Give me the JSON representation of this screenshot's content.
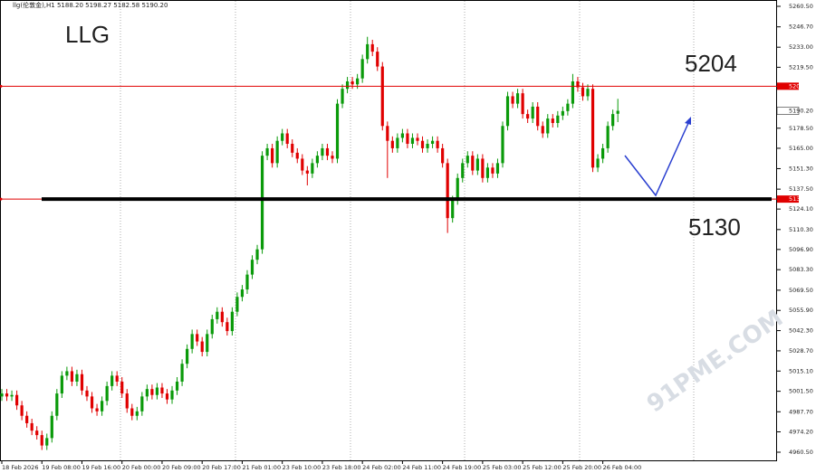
{
  "chart_data": {
    "type": "candlestick",
    "header": "llg(伦敦金),H1  5188.20 5198.27 5182.58 5190.20",
    "annotations": [
      "LLG",
      "5204",
      "5130"
    ],
    "watermark": "91PME.COM",
    "up_color": "#0a9a0a",
    "down_color": "#e00000",
    "categories": [
      "18 Feb 2026",
      null,
      null,
      null,
      null,
      null,
      null,
      null,
      "19 Feb 08:00",
      null,
      null,
      null,
      null,
      null,
      null,
      null,
      "19 Feb 16:00",
      null,
      null,
      null,
      null,
      null,
      null,
      null,
      "20 Feb 00:00",
      null,
      null,
      null,
      null,
      null,
      null,
      null,
      "20 Feb 09:00",
      null,
      null,
      null,
      null,
      null,
      null,
      null,
      "20 Feb 17:00",
      null,
      null,
      null,
      null,
      null,
      null,
      null,
      "21 Feb 01:00",
      null,
      null,
      null,
      null,
      null,
      null,
      null,
      "23 Feb 10:00",
      null,
      null,
      null,
      null,
      null,
      null,
      null,
      "23 Feb 18:00",
      null,
      null,
      null,
      null,
      null,
      null,
      null,
      "24 Feb 02:00",
      null,
      null,
      null,
      null,
      null,
      null,
      null,
      "24 Feb 11:00",
      null,
      null,
      null,
      null,
      null,
      null,
      null,
      "24 Feb 19:00",
      null,
      null,
      null,
      null,
      null,
      null,
      null,
      "25 Feb 03:00",
      null,
      null,
      null,
      null,
      null,
      null,
      null,
      "25 Feb 12:00",
      null,
      null,
      null,
      null,
      null,
      null,
      null,
      "25 Feb 20:00",
      null,
      null,
      null,
      null,
      null,
      null,
      null,
      "26 Feb 04:00",
      null,
      null,
      null
    ],
    "open": [
      4998,
      5000,
      4998,
      4999,
      4992,
      4985,
      4980,
      4975,
      4972,
      4965,
      4970,
      4985,
      5000,
      5012,
      5015,
      5008,
      5013,
      5002,
      4998,
      4990,
      4988,
      4995,
      5005,
      5012,
      5008,
      5000,
      4990,
      4985,
      4988,
      4998,
      5003,
      4999,
      5004,
      5000,
      4996,
      5002,
      5008,
      5020,
      5030,
      5040,
      5035,
      5028,
      5040,
      5050,
      5055,
      5048,
      5042,
      5055,
      5065,
      5070,
      5080,
      5090,
      5097,
      5160,
      5165,
      5155,
      5170,
      5175,
      5168,
      5162,
      5158,
      5150,
      5148,
      5155,
      5160,
      5165,
      5160,
      5158,
      5195,
      5205,
      5210,
      5208,
      5212,
      5225,
      5235,
      5230,
      5220,
      5180,
      5170,
      5165,
      5172,
      5175,
      5168,
      5172,
      5170,
      5165,
      5168,
      5170,
      5165,
      5155,
      5118,
      5130,
      5145,
      5155,
      5160,
      5150,
      5158,
      5145,
      5152,
      5148,
      5155,
      5180,
      5200,
      5195,
      5202,
      5188,
      5185,
      5193,
      5180,
      5175,
      5185,
      5182,
      5187,
      5190,
      5195,
      5210,
      5206,
      5200,
      5205,
      5152,
      5158,
      5165,
      5180,
      5188.2
    ],
    "high": [
      5003,
      5003,
      5002,
      5002,
      4995,
      4988,
      4983,
      4978,
      4975,
      4973,
      4988,
      5003,
      5015,
      5018,
      5018,
      5016,
      5016,
      5005,
      5001,
      4993,
      4998,
      5008,
      5015,
      5015,
      5011,
      5003,
      4993,
      4991,
      5001,
      5006,
      5006,
      5007,
      5007,
      5003,
      5005,
      5011,
      5023,
      5033,
      5043,
      5043,
      5038,
      5043,
      5053,
      5058,
      5058,
      5051,
      5058,
      5068,
      5073,
      5083,
      5093,
      5100,
      5163,
      5168,
      5168,
      5173,
      5178,
      5178,
      5171,
      5165,
      5161,
      5153,
      5158,
      5163,
      5168,
      5168,
      5163,
      5198,
      5208,
      5213,
      5213,
      5215,
      5228,
      5240,
      5238,
      5233,
      5223,
      5183,
      5173,
      5175,
      5178,
      5178,
      5175,
      5175,
      5173,
      5171,
      5173,
      5173,
      5168,
      5158,
      5133,
      5148,
      5158,
      5163,
      5163,
      5161,
      5161,
      5155,
      5155,
      5158,
      5183,
      5203,
      5203,
      5205,
      5205,
      5191,
      5196,
      5196,
      5183,
      5188,
      5188,
      5190,
      5193,
      5198,
      5215,
      5213,
      5209,
      5208,
      5208,
      5161,
      5168,
      5183,
      5191,
      5198.27
    ],
    "low": [
      4995,
      4995,
      4995,
      4989,
      4982,
      4977,
      4972,
      4969,
      4962,
      4962,
      4967,
      4982,
      4997,
      5009,
      5005,
      5005,
      4999,
      4995,
      4987,
      4985,
      4985,
      4992,
      5002,
      5005,
      4997,
      4987,
      4982,
      4982,
      4985,
      4995,
      4996,
      4996,
      4997,
      4993,
      4993,
      4999,
      5005,
      5017,
      5027,
      5032,
      5025,
      5025,
      5037,
      5047,
      5045,
      5039,
      5039,
      5052,
      5062,
      5067,
      5077,
      5087,
      5094,
      5157,
      5152,
      5152,
      5167,
      5165,
      5159,
      5155,
      5147,
      5140,
      5145,
      5152,
      5157,
      5157,
      5155,
      5155,
      5192,
      5202,
      5205,
      5205,
      5209,
      5222,
      5227,
      5217,
      5177,
      5145,
      5162,
      5162,
      5169,
      5165,
      5165,
      5167,
      5162,
      5162,
      5165,
      5162,
      5152,
      5108,
      5115,
      5127,
      5142,
      5152,
      5147,
      5147,
      5142,
      5142,
      5145,
      5145,
      5152,
      5177,
      5192,
      5192,
      5185,
      5182,
      5182,
      5177,
      5172,
      5172,
      5179,
      5179,
      5184,
      5187,
      5192,
      5203,
      5197,
      5197,
      5149,
      5149,
      5155,
      5162,
      5177,
      5182.58
    ],
    "close": [
      5000,
      4998,
      4999,
      4992,
      4985,
      4980,
      4975,
      4972,
      4965,
      4970,
      4985,
      5000,
      5012,
      5015,
      5008,
      5013,
      5002,
      4998,
      4990,
      4988,
      4995,
      5005,
      5012,
      5008,
      5000,
      4990,
      4985,
      4988,
      4998,
      5003,
      4999,
      5004,
      5000,
      4996,
      5002,
      5008,
      5020,
      5030,
      5040,
      5035,
      5028,
      5040,
      5050,
      5055,
      5048,
      5042,
      5055,
      5065,
      5070,
      5080,
      5090,
      5097,
      5160,
      5165,
      5155,
      5170,
      5175,
      5168,
      5162,
      5158,
      5150,
      5148,
      5155,
      5160,
      5165,
      5160,
      5158,
      5195,
      5205,
      5210,
      5208,
      5212,
      5225,
      5235,
      5230,
      5220,
      5180,
      5170,
      5165,
      5172,
      5175,
      5168,
      5172,
      5170,
      5165,
      5168,
      5170,
      5165,
      5155,
      5118,
      5130,
      5145,
      5155,
      5160,
      5150,
      5158,
      5145,
      5152,
      5148,
      5155,
      5180,
      5200,
      5195,
      5202,
      5188,
      5185,
      5193,
      5180,
      5175,
      5185,
      5182,
      5187,
      5190,
      5195,
      5210,
      5206,
      5200,
      5205,
      5152,
      5158,
      5165,
      5180,
      5188,
      5190.2
    ],
    "hlines": [
      {
        "value": 5206.75,
        "color": "#e00000"
      },
      {
        "value": 5130.81,
        "color": "#e00000"
      }
    ],
    "support_line": {
      "value": 5130.81,
      "color": "#000000"
    },
    "last_price": {
      "value": 5190.2,
      "label": "5190.20"
    },
    "ylim": [
      4960.5,
      5260.5
    ],
    "yticks": [
      {
        "value": 5260.5,
        "label": "5260.50"
      },
      {
        "value": 5246.7,
        "label": "5246.70"
      },
      {
        "value": 5233,
        "label": "5233.00"
      },
      {
        "value": 5219.5,
        "label": "5219.50"
      },
      {
        "value": 5178.5,
        "label": "5178.50"
      },
      {
        "value": 5165,
        "label": "5165.00"
      },
      {
        "value": 5151.3,
        "label": "5151.30"
      },
      {
        "value": 5137.5,
        "label": "5137.50"
      },
      {
        "value": 5124.1,
        "label": "5124.10"
      },
      {
        "value": 5110.3,
        "label": "5110.30"
      },
      {
        "value": 5096.9,
        "label": "5096.90"
      },
      {
        "value": 5083.3,
        "label": "5083.30"
      },
      {
        "value": 5069.5,
        "label": "5069.50"
      },
      {
        "value": 5055.9,
        "label": "5055.90"
      },
      {
        "value": 5042.3,
        "label": "5042.30"
      },
      {
        "value": 5028.7,
        "label": "5028.70"
      },
      {
        "value": 5015.1,
        "label": "5015.10"
      },
      {
        "value": 5001.5,
        "label": "5001.50"
      },
      {
        "value": 4987.7,
        "label": "4987.70"
      },
      {
        "value": 4974.2,
        "label": "4974.20"
      },
      {
        "value": 4960.5,
        "label": "4960.50"
      }
    ]
  }
}
